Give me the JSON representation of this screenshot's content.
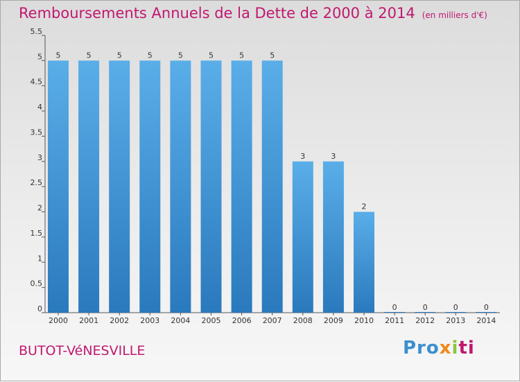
{
  "header": {
    "title": "Remboursements Annuels de la Dette de 2000 à 2014",
    "unit": "(en milliers d'€)"
  },
  "footer": {
    "commune": "BUTOT-VéNESVILLE",
    "logo": {
      "p1": "Pro",
      "p2": "x",
      "p3": "i",
      "p4": "ti"
    }
  },
  "colors": {
    "title": "#c0186e",
    "bar_top": "#5aaee8",
    "bar_bottom": "#2a79bd"
  },
  "chart_data": {
    "type": "bar",
    "categories": [
      "2000",
      "2001",
      "2002",
      "2003",
      "2004",
      "2005",
      "2006",
      "2007",
      "2008",
      "2009",
      "2010",
      "2011",
      "2012",
      "2013",
      "2014"
    ],
    "values": [
      5,
      5,
      5,
      5,
      5,
      5,
      5,
      5,
      3,
      3,
      2,
      0,
      0,
      0,
      0
    ],
    "yticks": [
      "0",
      "0.5",
      "1",
      "1.5",
      "2",
      "2.5",
      "3",
      "3.5",
      "4",
      "4.5",
      "5",
      "5.5"
    ],
    "ylim": [
      0,
      5.5
    ],
    "grid": false
  }
}
